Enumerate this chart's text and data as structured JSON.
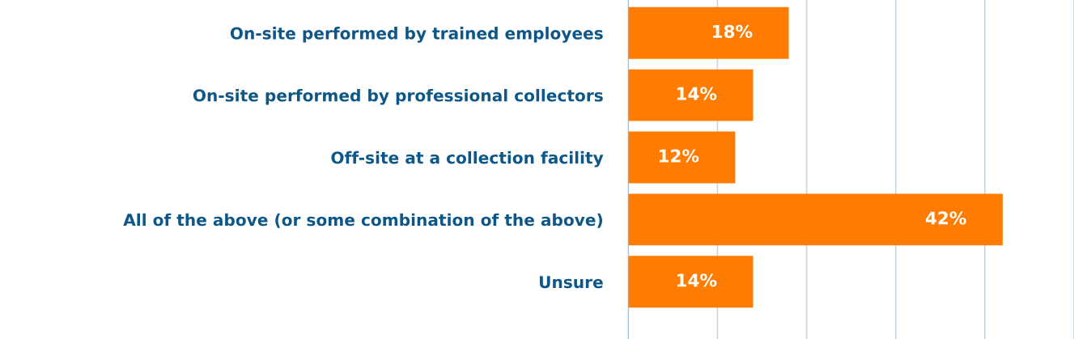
{
  "chart_data": {
    "type": "bar",
    "orientation": "horizontal",
    "categories": [
      "On-site performed by trained employees",
      "On-site performed by professional collectors",
      "Off-site at a collection facility",
      "All of the above (or some combination of the above)",
      "Unsure"
    ],
    "values": [
      18,
      14,
      12,
      42,
      14
    ],
    "value_labels": [
      "18%",
      "14%",
      "12%",
      "42%",
      "14%"
    ],
    "color": "#ff7c00",
    "xlim": [
      0,
      50
    ],
    "xticks": [
      {
        "value": 0,
        "label": null
      },
      {
        "value": 10,
        "label": null
      },
      {
        "value": 20,
        "label": null
      },
      {
        "value": 30,
        "label": null
      },
      {
        "value": 40,
        "label": null
      },
      {
        "value": 50,
        "label": null
      }
    ],
    "grid": "x",
    "tick_labels": "y",
    "legend": false
  }
}
